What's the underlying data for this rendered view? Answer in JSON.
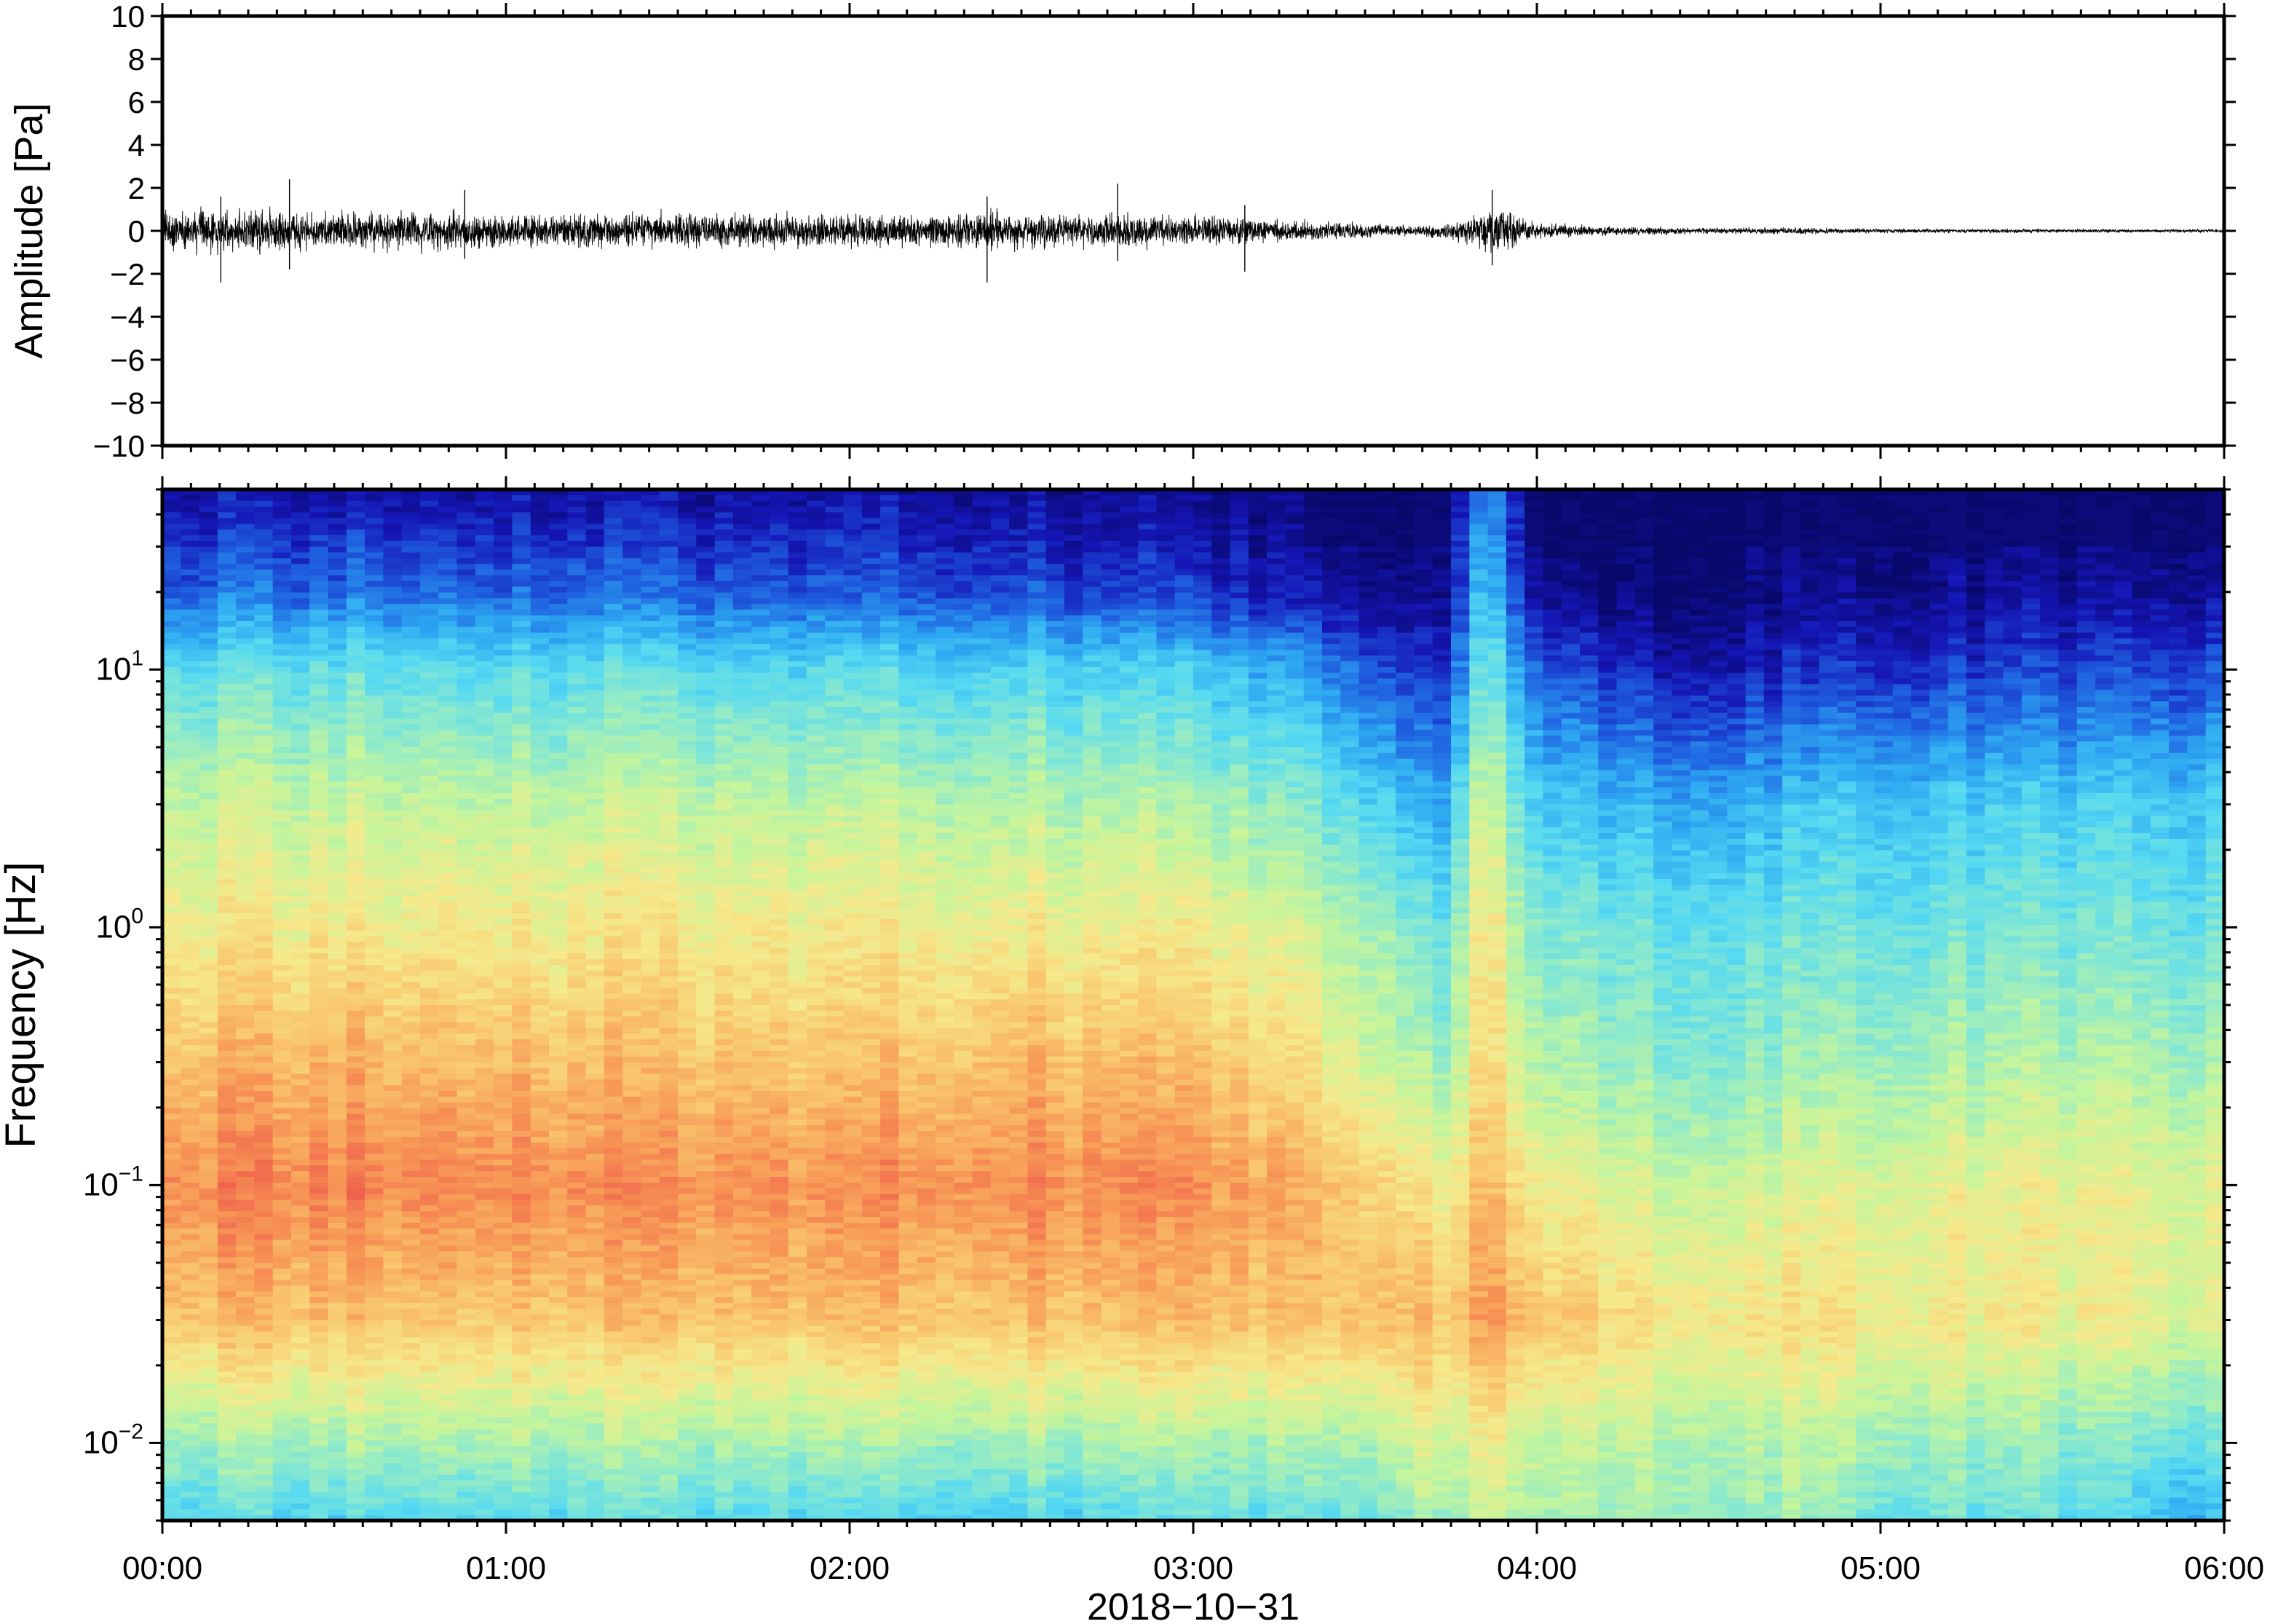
{
  "chart_data": [
    {
      "type": "line",
      "title": "",
      "xlabel": "",
      "ylabel": "Amplitude [Pa]",
      "xlim": [
        "00:00",
        "06:00"
      ],
      "ylim": [
        -10,
        10
      ],
      "grid": false,
      "y_ticks": [
        "10",
        "8",
        "6",
        "4",
        "2",
        "0",
        "−2",
        "−4",
        "−6",
        "−8",
        "−10"
      ],
      "series": [
        {
          "x_hours": [
            0,
            0.25,
            0.5,
            0.75,
            1.0,
            1.25,
            1.5,
            1.75,
            2.0,
            2.25,
            2.4,
            2.5,
            2.75,
            3.0,
            3.25,
            3.5,
            3.65,
            3.75,
            3.88,
            4.0,
            4.25,
            4.5,
            4.75,
            5.0,
            5.25,
            5.5,
            5.75,
            6.0
          ],
          "envelope": [
            1.2,
            1.3,
            1.2,
            1.2,
            1.1,
            1.0,
            1.1,
            1.0,
            1.0,
            1.0,
            1.3,
            1.1,
            1.0,
            0.9,
            0.7,
            0.5,
            0.3,
            0.5,
            1.5,
            0.5,
            0.25,
            0.2,
            0.2,
            0.15,
            0.12,
            0.12,
            0.1,
            0.1
          ],
          "peaks": [
            {
              "x_hours": 0.37,
              "max": 2.4,
              "min": -1.8
            },
            {
              "x_hours": 0.17,
              "max": 1.6,
              "min": -2.4
            },
            {
              "x_hours": 0.88,
              "max": 1.9,
              "min": -1.3
            },
            {
              "x_hours": 2.4,
              "max": 1.6,
              "min": -2.4
            },
            {
              "x_hours": 2.78,
              "max": 2.2,
              "min": -1.4
            },
            {
              "x_hours": 3.15,
              "max": 1.2,
              "min": -1.9
            },
            {
              "x_hours": 3.87,
              "max": 1.9,
              "min": -1.6
            }
          ]
        }
      ]
    },
    {
      "type": "heatmap",
      "title": "",
      "xlabel": "2018−10−31",
      "ylabel": "Frequency [Hz]",
      "xlim": [
        "00:00",
        "06:00"
      ],
      "x_ticks": [
        "00:00",
        "01:00",
        "02:00",
        "03:00",
        "04:00",
        "05:00",
        "06:00"
      ],
      "ylim": [
        0.005,
        50
      ],
      "y_scale": "log",
      "y_ticks": [
        {
          "base": "10",
          "exp": "1",
          "value": 10
        },
        {
          "base": "10",
          "exp": "0",
          "value": 1
        },
        {
          "base": "10",
          "exp": "−1",
          "value": 0.1
        },
        {
          "base": "10",
          "exp": "−2",
          "value": 0.01
        }
      ],
      "colormap": [
        "#08086b",
        "#1515b5",
        "#1f5fe0",
        "#2ea9f2",
        "#55d9f2",
        "#8eeacb",
        "#c6f59b",
        "#f6e98c",
        "#f9c46c",
        "#f79254",
        "#ef5b4c"
      ],
      "x_hours": [
        0,
        0.5,
        1.0,
        1.5,
        2.0,
        2.5,
        3.0,
        3.3,
        3.55,
        3.7,
        3.85,
        4.0,
        4.15,
        4.4,
        4.75,
        5.0,
        5.5,
        6.0
      ],
      "y_hz": [
        0.005,
        0.01,
        0.03,
        0.1,
        0.3,
        1,
        3,
        10,
        20,
        50
      ],
      "values": [
        [
          0.42,
          0.55,
          0.82,
          0.92,
          0.82,
          0.7,
          0.62,
          0.43,
          0.22,
          0.08
        ],
        [
          0.4,
          0.55,
          0.8,
          0.93,
          0.83,
          0.7,
          0.61,
          0.43,
          0.22,
          0.08
        ],
        [
          0.42,
          0.56,
          0.79,
          0.92,
          0.82,
          0.7,
          0.6,
          0.42,
          0.21,
          0.08
        ],
        [
          0.42,
          0.55,
          0.8,
          0.9,
          0.8,
          0.7,
          0.6,
          0.42,
          0.2,
          0.07
        ],
        [
          0.4,
          0.55,
          0.8,
          0.9,
          0.79,
          0.69,
          0.59,
          0.4,
          0.19,
          0.07
        ],
        [
          0.38,
          0.55,
          0.8,
          0.92,
          0.82,
          0.69,
          0.58,
          0.4,
          0.18,
          0.06
        ],
        [
          0.42,
          0.56,
          0.8,
          0.9,
          0.8,
          0.68,
          0.55,
          0.36,
          0.14,
          0.04
        ],
        [
          0.44,
          0.56,
          0.8,
          0.85,
          0.73,
          0.64,
          0.5,
          0.3,
          0.1,
          0.03
        ],
        [
          0.48,
          0.58,
          0.82,
          0.78,
          0.63,
          0.55,
          0.4,
          0.2,
          0.05,
          0.01
        ],
        [
          0.55,
          0.64,
          0.8,
          0.68,
          0.52,
          0.42,
          0.28,
          0.1,
          0.02,
          0.0
        ],
        [
          0.58,
          0.66,
          0.86,
          0.8,
          0.73,
          0.7,
          0.62,
          0.45,
          0.35,
          0.25
        ],
        [
          0.56,
          0.62,
          0.8,
          0.7,
          0.58,
          0.5,
          0.38,
          0.22,
          0.06,
          0.01
        ],
        [
          0.56,
          0.6,
          0.78,
          0.66,
          0.55,
          0.48,
          0.36,
          0.16,
          0.03,
          0.0
        ],
        [
          0.54,
          0.58,
          0.72,
          0.62,
          0.5,
          0.44,
          0.32,
          0.1,
          0.02,
          0.0
        ],
        [
          0.52,
          0.57,
          0.72,
          0.63,
          0.52,
          0.44,
          0.34,
          0.12,
          0.03,
          0.0
        ],
        [
          0.46,
          0.55,
          0.7,
          0.65,
          0.54,
          0.45,
          0.36,
          0.14,
          0.04,
          0.0
        ],
        [
          0.42,
          0.5,
          0.68,
          0.66,
          0.56,
          0.46,
          0.37,
          0.15,
          0.05,
          0.0
        ],
        [
          0.32,
          0.45,
          0.66,
          0.66,
          0.56,
          0.46,
          0.38,
          0.18,
          0.07,
          0.01
        ]
      ]
    }
  ]
}
